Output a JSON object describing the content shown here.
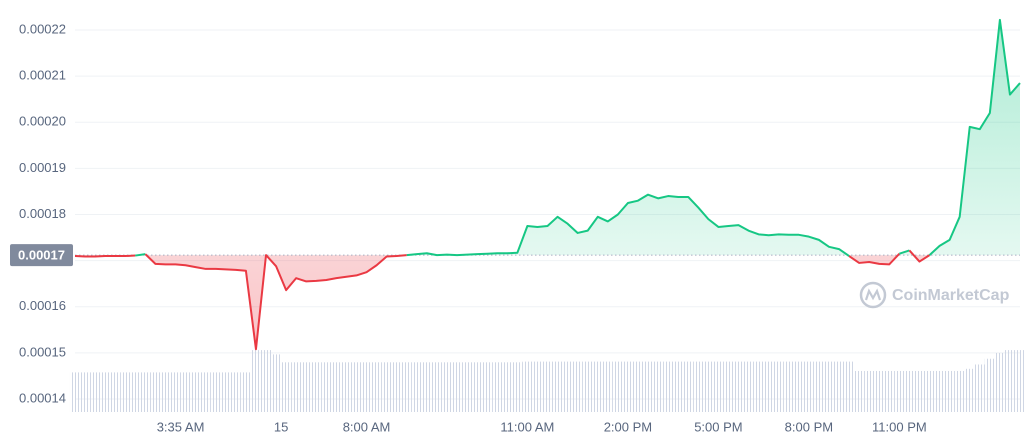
{
  "chart_data": {
    "type": "line",
    "xlim": [
      0,
      94
    ],
    "xticks": [
      {
        "value": 10.5,
        "label": "3:35 AM"
      },
      {
        "value": 20.5,
        "label": "15"
      },
      {
        "value": 29,
        "label": "8:00 AM"
      },
      {
        "value": 45,
        "label": "11:00 AM"
      },
      {
        "value": 55,
        "label": "2:00 PM"
      },
      {
        "value": 64,
        "label": "5:00 PM"
      },
      {
        "value": 73,
        "label": "8:00 PM"
      },
      {
        "value": 82,
        "label": "11:00 PM"
      }
    ],
    "ylim": [
      0.0001309,
      0.0002265
    ],
    "yticks": [
      0.00014,
      0.00015,
      0.00016,
      0.00017,
      0.00018,
      0.00019,
      {
        "value": 0.0002,
        "label": "0.00020"
      },
      0.00021,
      0.00022
    ],
    "grid": true,
    "reference": {
      "value": 0.0001712,
      "label": "0.00017"
    },
    "up_color": "#16c784",
    "down_color": "#ea3943",
    "series": [
      {
        "values": [
          0.000171,
          0.0001709,
          0.0001709,
          0.000171,
          0.000171,
          0.000171,
          0.0001711,
          0.0001714,
          0.0001693,
          0.0001692,
          0.0001692,
          0.000169,
          0.0001686,
          0.0001682,
          0.0001682,
          0.0001681,
          0.000168,
          0.0001678,
          0.0001508,
          0.0001712,
          0.0001688,
          0.0001636,
          0.0001662,
          0.0001655,
          0.0001656,
          0.0001658,
          0.0001662,
          0.0001665,
          0.0001668,
          0.0001675,
          0.000169,
          0.0001709,
          0.000171,
          0.0001712,
          0.0001714,
          0.0001716,
          0.0001712,
          0.0001713,
          0.0001712,
          0.0001713,
          0.0001714,
          0.0001715,
          0.0001716,
          0.0001716,
          0.0001717,
          0.0001775,
          0.0001773,
          0.0001775,
          0.0001795,
          0.000178,
          0.000176,
          0.0001765,
          0.0001795,
          0.0001785,
          0.00018,
          0.0001825,
          0.000183,
          0.0001843,
          0.0001835,
          0.000184,
          0.0001838,
          0.0001838,
          0.0001815,
          0.000179,
          0.0001773,
          0.0001775,
          0.0001777,
          0.0001765,
          0.0001757,
          0.0001755,
          0.0001757,
          0.0001756,
          0.0001756,
          0.0001752,
          0.0001745,
          0.000173,
          0.0001725,
          0.000171,
          0.0001695,
          0.0001697,
          0.0001693,
          0.0001692,
          0.0001715,
          0.0001722,
          0.0001698,
          0.0001712,
          0.0001732,
          0.0001745,
          0.0001795,
          0.000199,
          0.0001985,
          0.000202,
          0.0002222,
          0.000206,
          0.0002085
        ]
      }
    ],
    "volume": {
      "color": "#cfd6e4",
      "y2lim": [
        0,
        100
      ],
      "values": [
        55,
        55,
        55,
        55,
        55,
        55,
        55,
        55,
        55,
        55,
        55,
        55,
        55,
        55,
        55,
        55,
        55,
        55,
        86,
        86,
        80,
        69,
        69,
        69,
        69,
        69,
        69,
        69,
        69,
        69,
        69,
        69,
        69,
        69,
        69,
        69,
        69,
        69,
        69,
        69,
        69,
        69,
        69,
        69,
        69,
        70,
        70,
        70,
        70,
        70,
        70,
        70,
        70,
        70,
        70,
        70,
        70,
        70,
        70,
        70,
        70,
        70,
        70,
        70,
        70,
        70,
        70,
        70,
        70,
        70,
        70,
        70,
        70,
        70,
        70,
        70,
        70,
        70,
        57,
        57,
        57,
        57,
        57,
        57,
        57,
        57,
        57,
        57,
        57,
        60,
        66,
        74,
        82,
        86,
        86
      ]
    },
    "watermark": "CoinMarketCap"
  }
}
